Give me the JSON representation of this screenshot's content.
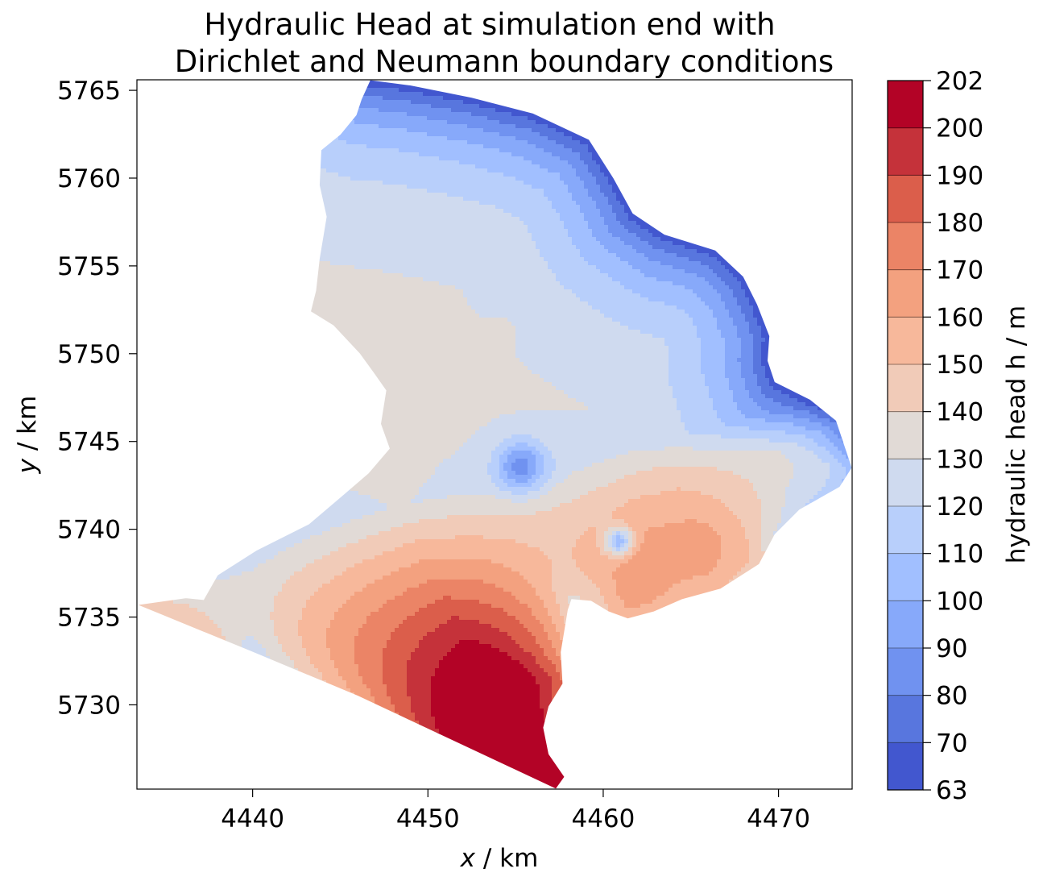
{
  "chart_data": {
    "type": "contour",
    "title_line1": "Hydraulic Head at simulation end with",
    "title_line2": "Dirichlet and Neumann boundary conditions",
    "xlabel_var": "x",
    "xlabel_unit": " / km",
    "ylabel_var": "y",
    "ylabel_unit": " / km",
    "xlim": [
      4433.4,
      4474.2
    ],
    "ylim": [
      5725.2,
      5765.6
    ],
    "xticks": [
      4440,
      4450,
      4460,
      4470
    ],
    "yticks": [
      5730,
      5735,
      5740,
      5745,
      5750,
      5755,
      5760,
      5765
    ],
    "colorbar": {
      "label": "hydraulic head h / m",
      "levels": [
        63,
        70,
        80,
        90,
        100,
        110,
        120,
        130,
        140,
        150,
        160,
        170,
        180,
        190,
        200,
        202
      ],
      "colors": [
        "#4257cf",
        "#5876de",
        "#7092f0",
        "#87a9fa",
        "#a1bfff",
        "#b8cffb",
        "#cfdaef",
        "#e1dad6",
        "#f1cbb8",
        "#f7b89b",
        "#f3a17f",
        "#eb8466",
        "#db5e4b",
        "#c5323a",
        "#b30326"
      ]
    },
    "head_peak_label": "",
    "domain_outline": [
      [
        4446.7,
        5765.6
      ],
      [
        4449.0,
        5765.3
      ],
      [
        4452.5,
        5764.6
      ],
      [
        4456.0,
        5763.7
      ],
      [
        4459.2,
        5762.2
      ],
      [
        4460.6,
        5760.0
      ],
      [
        4461.7,
        5758.0
      ],
      [
        4463.5,
        5756.8
      ],
      [
        4466.4,
        5755.9
      ],
      [
        4468.0,
        5754.4
      ],
      [
        4468.8,
        5752.8
      ],
      [
        4469.5,
        5751.0
      ],
      [
        4469.4,
        5749.6
      ],
      [
        4469.8,
        5748.4
      ],
      [
        4471.8,
        5747.4
      ],
      [
        4473.3,
        5746.2
      ],
      [
        4474.2,
        5743.5
      ],
      [
        4473.5,
        5742.4
      ],
      [
        4471.2,
        5741.1
      ],
      [
        4469.8,
        5739.7
      ],
      [
        4468.9,
        5738.0
      ],
      [
        4466.7,
        5736.6
      ],
      [
        4464.5,
        5736.0
      ],
      [
        4462.9,
        5735.3
      ],
      [
        4461.4,
        5734.9
      ],
      [
        4460.3,
        5735.3
      ],
      [
        4459.3,
        5735.9
      ],
      [
        4458.2,
        5736.0
      ],
      [
        4458.0,
        5735.4
      ],
      [
        4457.6,
        5733.0
      ],
      [
        4457.7,
        5731.2
      ],
      [
        4456.9,
        5729.9
      ],
      [
        4456.6,
        5728.7
      ],
      [
        4456.9,
        5727.2
      ],
      [
        4457.8,
        5725.9
      ],
      [
        4457.3,
        5725.2
      ],
      [
        4446.0,
        5730.5
      ],
      [
        4440.0,
        5733.0
      ],
      [
        4433.4,
        5735.7
      ],
      [
        4436.2,
        5736.1
      ],
      [
        4437.2,
        5736.0
      ],
      [
        4438.0,
        5737.4
      ],
      [
        4440.2,
        5738.8
      ],
      [
        4443.2,
        5740.3
      ],
      [
        4445.2,
        5742.0
      ],
      [
        4446.6,
        5743.2
      ],
      [
        4447.8,
        5744.6
      ],
      [
        4447.3,
        5746.0
      ],
      [
        4447.6,
        5747.9
      ],
      [
        4446.9,
        5748.9
      ],
      [
        4446.1,
        5750.0
      ],
      [
        4444.6,
        5751.6
      ],
      [
        4443.3,
        5752.4
      ],
      [
        4443.6,
        5753.6
      ],
      [
        4443.8,
        5755.4
      ],
      [
        4444.2,
        5757.8
      ],
      [
        4443.8,
        5759.6
      ],
      [
        4443.9,
        5761.6
      ],
      [
        4445.0,
        5762.5
      ],
      [
        4445.9,
        5763.6
      ],
      [
        4446.2,
        5764.5
      ]
    ],
    "field_sources": [
      {
        "x": 4452.5,
        "y": 5725.2,
        "value": 210,
        "spread": 4.0
      },
      {
        "x": 4451.0,
        "y": 5729.5,
        "value": 201,
        "spread": 0.7
      },
      {
        "x": 4455.3,
        "y": 5743.6,
        "value": 85,
        "spread": 1.4
      },
      {
        "x": 4454.2,
        "y": 5751.2,
        "value": 131,
        "spread": 1.1
      },
      {
        "x": 4460.9,
        "y": 5739.3,
        "value": 104,
        "spread": 0.8
      }
    ]
  }
}
